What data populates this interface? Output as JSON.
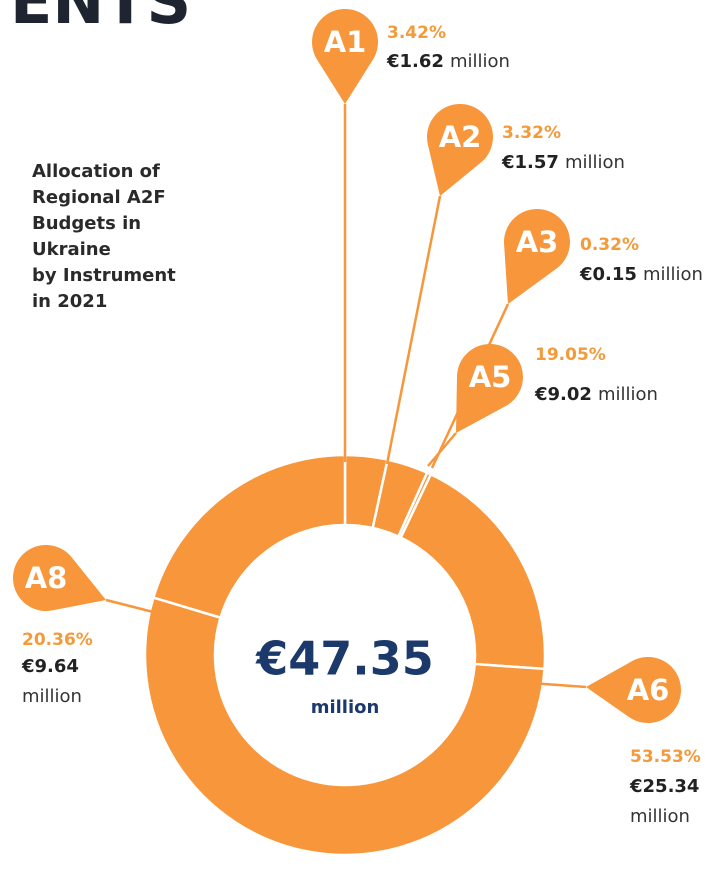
{
  "chart_data": {
    "type": "pie",
    "heading": "ENTS",
    "title": [
      "Allocation of",
      "Regional A2F",
      "Budgets in",
      "Ukraine",
      "by Instrument",
      "in 2021"
    ],
    "categories": [
      "A1",
      "A2",
      "A3",
      "A5",
      "A6",
      "A8"
    ],
    "values": [
      3.42,
      3.32,
      0.32,
      19.05,
      53.53,
      20.36
    ],
    "value_labels": [
      "3.42%",
      "3.32%",
      "0.32%",
      "19.05%",
      "53.53%",
      "20.36%"
    ],
    "amounts": [
      1.62,
      1.57,
      0.15,
      9.02,
      25.34,
      9.64
    ],
    "amount_labels": [
      "€1.62",
      "€1.57",
      "€0.15",
      "€9.02",
      "€25.34",
      "€9.64"
    ],
    "unit": "million",
    "total": 47.35,
    "total_label": "€47.35",
    "color": "#F7963A"
  }
}
